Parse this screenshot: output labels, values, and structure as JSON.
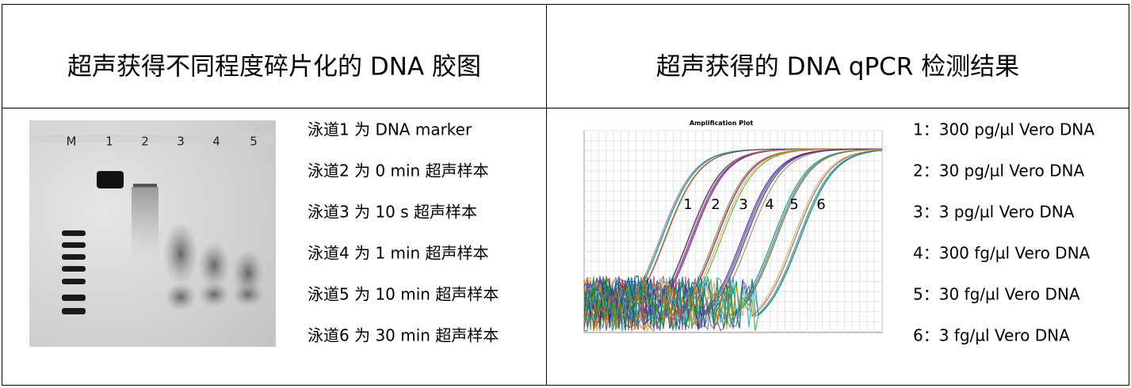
{
  "left": {
    "header": "超声获得不同程度碎片化的 DNA 胶图",
    "gel": {
      "lanes": [
        "M",
        "1",
        "2",
        "3",
        "4",
        "5"
      ]
    },
    "legend": [
      "泳道1 为 DNA marker",
      "泳道2 为 0 min 超声样本",
      "泳道3 为 10 s 超声样本",
      "泳道4 为 1 min 超声样本",
      "泳道5 为 10 min 超声样本",
      "泳道6 为 30 min 超声样本"
    ]
  },
  "right": {
    "header": "超声获得的 DNA qPCR 检测结果",
    "plot": {
      "title": "Amplification Plot",
      "curve_labels": [
        "1",
        "2",
        "3",
        "4",
        "5",
        "6"
      ]
    },
    "legend": [
      "1：300 pg/µl Vero DNA",
      "2：30 pg/µl Vero DNA",
      "3：3 pg/µl Vero DNA",
      "4：300 fg/µl Vero DNA",
      "5：30 fg/µl Vero DNA",
      "6：3 fg/µl Vero DNA"
    ]
  }
}
